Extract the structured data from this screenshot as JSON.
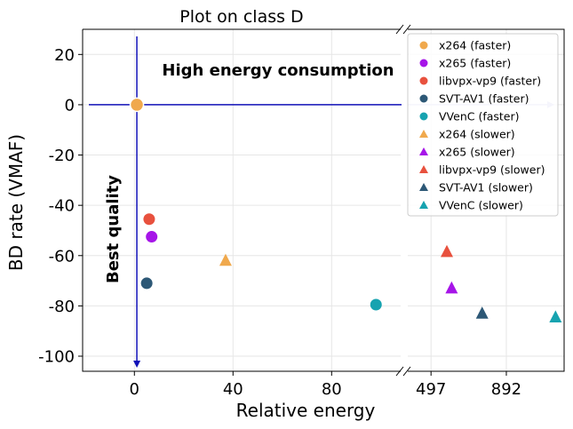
{
  "chart_data": {
    "type": "scatter",
    "title": "Plot on class D",
    "xlabel": "Relative energy",
    "ylabel": "BD rate (VMAF)",
    "ylim": [
      -106,
      30
    ],
    "y_ticks": [
      "20",
      "0",
      "-20",
      "-40",
      "-60",
      "-80",
      "-100"
    ],
    "y_tick_values": [
      20,
      0,
      -20,
      -40,
      -60,
      -80,
      -100
    ],
    "left_panel": {
      "xlim": [
        -21,
        108
      ],
      "x_ticks": [
        "0",
        "40",
        "80"
      ],
      "x_tick_values": [
        0,
        40,
        80
      ]
    },
    "right_panel": {
      "xlim": [
        375,
        1195
      ],
      "x_ticks": [
        "497",
        "892"
      ],
      "x_tick_values": [
        497,
        892
      ]
    },
    "grid": true,
    "legend_position": "top-right",
    "annotations": {
      "horizontal": "High energy consumption",
      "vertical": "Best quality"
    },
    "reference_point": {
      "x": 1,
      "y": 0,
      "color": "#f0a94d"
    },
    "series": [
      {
        "name": "x264 (faster)",
        "marker": "circle",
        "color": "#f0a94d",
        "x": 1,
        "y": 0
      },
      {
        "name": "x265 (faster)",
        "marker": "circle",
        "color": "#a615e8",
        "x": 7,
        "y": -52.5
      },
      {
        "name": "libvpx-vp9 (faster)",
        "marker": "circle",
        "color": "#e8513e",
        "x": 6,
        "y": -45.5
      },
      {
        "name": "SVT-AV1 (faster)",
        "marker": "circle",
        "color": "#2d5876",
        "x": 5,
        "y": -71
      },
      {
        "name": "VVenC (faster)",
        "marker": "circle",
        "color": "#17a3b0",
        "x": 98,
        "y": -79.5
      },
      {
        "name": "x264 (slower)",
        "marker": "triangle",
        "color": "#f0a94d",
        "x": 37,
        "y": -62
      },
      {
        "name": "x265 (slower)",
        "marker": "triangle",
        "color": "#a615e8",
        "x": 605,
        "y": -73
      },
      {
        "name": "libvpx-vp9 (slower)",
        "marker": "triangle",
        "color": "#e8513e",
        "x": 580,
        "y": -58.5
      },
      {
        "name": "SVT-AV1 (slower)",
        "marker": "triangle",
        "color": "#2d5876",
        "x": 765,
        "y": -83
      },
      {
        "name": "VVenC (slower)",
        "marker": "triangle",
        "color": "#17a3b0",
        "x": 1150,
        "y": -84.5
      }
    ]
  }
}
